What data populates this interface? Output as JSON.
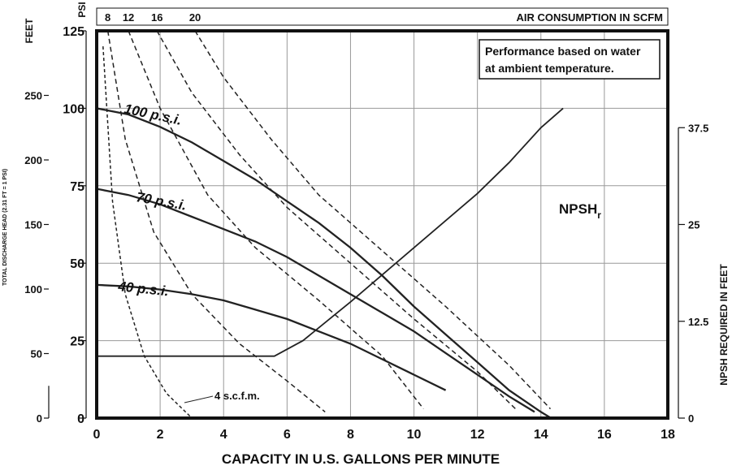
{
  "chart_data": {
    "type": "line",
    "x_axis": {
      "label": "CAPACITY IN U.S. GALLONS PER MINUTE",
      "range": [
        0,
        18
      ],
      "ticks": [
        "0",
        "2",
        "4",
        "6",
        "8",
        "10",
        "12",
        "14",
        "16",
        "18"
      ]
    },
    "y_axis_feet": {
      "label": "FEET",
      "range": [
        0,
        125
      ],
      "ticks": [
        "0",
        "25",
        "50",
        "75",
        "100",
        "125"
      ]
    },
    "y_axis_psi": {
      "label": "PSI",
      "range": [
        0,
        300
      ],
      "ticks": [
        "0",
        "50",
        "100",
        "150",
        "200",
        "250"
      ],
      "sublabel": "TOTAL DISCHARGE HEAD (2.31 FT = 1 PSI)"
    },
    "y_axis_npsh": {
      "label": "NPSH REQUIRED IN FEET",
      "range": [
        0,
        50
      ],
      "ticks": [
        "0",
        "12.5",
        "25",
        "37.5"
      ]
    },
    "top_axis": {
      "title": "AIR CONSUMPTION IN SCFM",
      "ticks": [
        {
          "label": "8",
          "x": 0.35
        },
        {
          "label": "12",
          "x": 1.0
        },
        {
          "label": "16",
          "x": 1.9
        },
        {
          "label": "20",
          "x": 3.1
        }
      ]
    },
    "note": [
      "Performance based on water",
      "at ambient temperature."
    ],
    "pressure_curves": [
      {
        "name": "100 p.s.i.",
        "points": [
          [
            0,
            100
          ],
          [
            1,
            98
          ],
          [
            2,
            94
          ],
          [
            3,
            89
          ],
          [
            4,
            83
          ],
          [
            5,
            77
          ],
          [
            6,
            70
          ],
          [
            7,
            63
          ],
          [
            8,
            55
          ],
          [
            9,
            46
          ],
          [
            10,
            36
          ],
          [
            11,
            27
          ],
          [
            12,
            18
          ],
          [
            13,
            9
          ],
          [
            14,
            2
          ],
          [
            14.8,
            -3
          ]
        ]
      },
      {
        "name": "70 p.s.i.",
        "points": [
          [
            0,
            74
          ],
          [
            1,
            72
          ],
          [
            2,
            69
          ],
          [
            3,
            65
          ],
          [
            4,
            61
          ],
          [
            5,
            57
          ],
          [
            6,
            52
          ],
          [
            7,
            46
          ],
          [
            8,
            40
          ],
          [
            9,
            34
          ],
          [
            10,
            28
          ],
          [
            11,
            21
          ],
          [
            12,
            14
          ],
          [
            13,
            7
          ],
          [
            13.8,
            2
          ]
        ]
      },
      {
        "name": "40 p.s.i.",
        "points": [
          [
            0,
            43
          ],
          [
            1,
            42.5
          ],
          [
            2,
            41.5
          ],
          [
            3,
            40
          ],
          [
            4,
            38
          ],
          [
            5,
            35
          ],
          [
            6,
            32
          ],
          [
            7,
            28
          ],
          [
            8,
            24
          ],
          [
            9,
            19
          ],
          [
            10,
            14
          ],
          [
            11,
            9
          ]
        ]
      }
    ],
    "scfm_curves": [
      {
        "name": "4 s.c.f.m.",
        "points": [
          [
            0.2,
            120
          ],
          [
            0.5,
            70
          ],
          [
            0.9,
            40
          ],
          [
            1.5,
            20
          ],
          [
            2.2,
            8
          ],
          [
            3.1,
            -1
          ]
        ]
      },
      {
        "name": "8",
        "points": [
          [
            0.35,
            125
          ],
          [
            0.9,
            90
          ],
          [
            1.8,
            60
          ],
          [
            3,
            40
          ],
          [
            4.5,
            24
          ],
          [
            6,
            12
          ],
          [
            7.2,
            2
          ]
        ]
      },
      {
        "name": "12",
        "points": [
          [
            1.0,
            125
          ],
          [
            2,
            100
          ],
          [
            3.5,
            72
          ],
          [
            5,
            55
          ],
          [
            7,
            38
          ],
          [
            9,
            20
          ],
          [
            10.3,
            3
          ]
        ]
      },
      {
        "name": "16",
        "points": [
          [
            1.9,
            125
          ],
          [
            3,
            105
          ],
          [
            4.5,
            85
          ],
          [
            6,
            68
          ],
          [
            8,
            50
          ],
          [
            10,
            32
          ],
          [
            12,
            15
          ],
          [
            13.2,
            3
          ]
        ]
      },
      {
        "name": "20",
        "points": [
          [
            3.1,
            125
          ],
          [
            4,
            110
          ],
          [
            5.5,
            90
          ],
          [
            7,
            72
          ],
          [
            9,
            54
          ],
          [
            11,
            36
          ],
          [
            13,
            17
          ],
          [
            14.3,
            3
          ]
        ]
      }
    ],
    "npsh_curve": {
      "name": "NPSH",
      "subscript": "r",
      "points": [
        [
          0,
          8
        ],
        [
          5.6,
          8
        ],
        [
          6.5,
          10
        ],
        [
          8,
          15
        ],
        [
          10,
          22
        ],
        [
          12,
          29
        ],
        [
          13,
          33
        ],
        [
          14.0,
          37.5
        ],
        [
          14.7,
          40
        ]
      ]
    }
  }
}
